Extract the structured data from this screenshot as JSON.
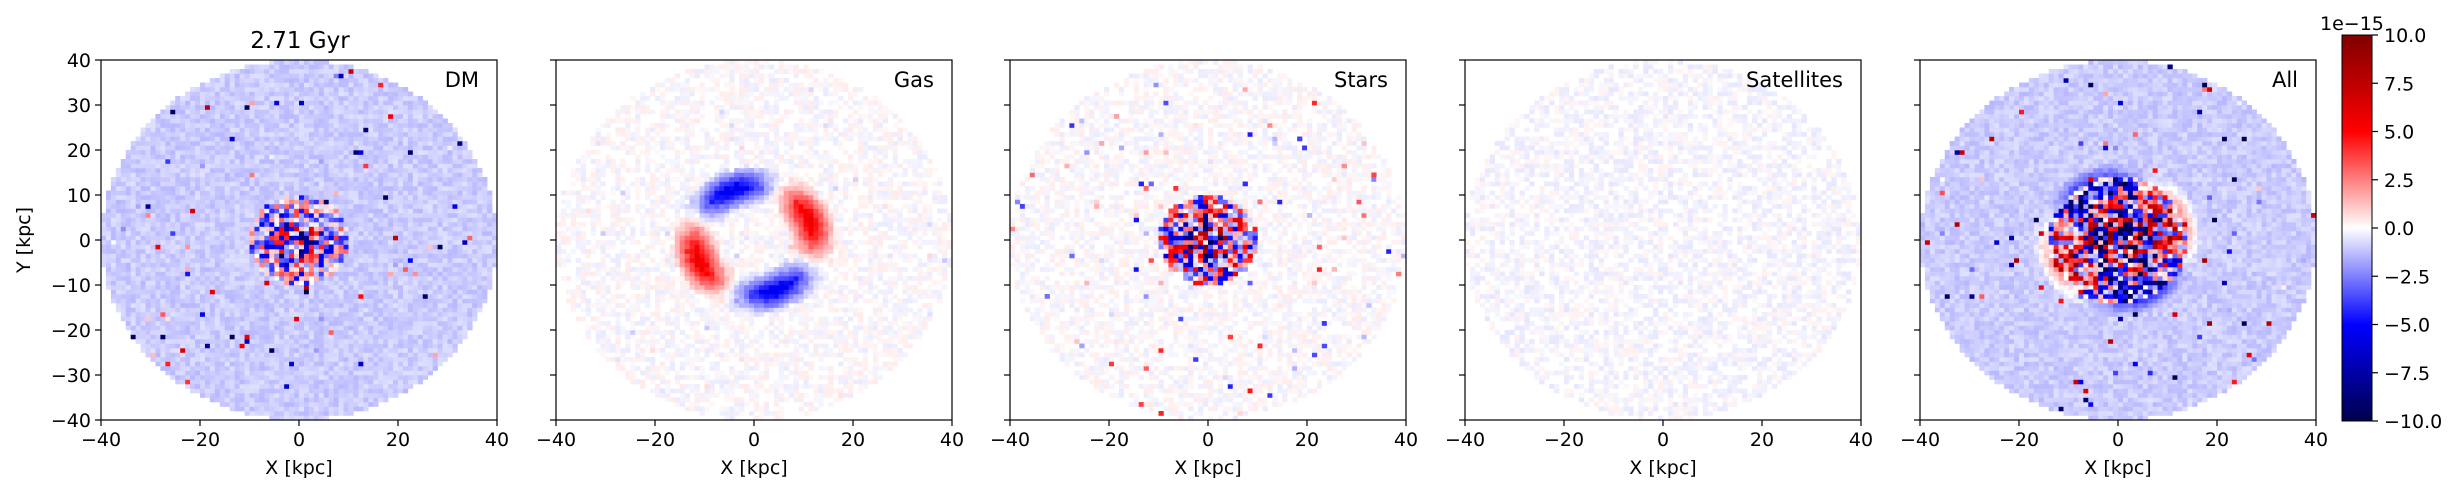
{
  "figure_title": "2.71 Gyr",
  "colorbar": {
    "exponent_label": "1e−15",
    "ticks": [
      "10.0",
      "7.5",
      "5.0",
      "2.5",
      "0.0",
      "−2.5",
      "−5.0",
      "−7.5",
      "−10.0"
    ],
    "range": [
      -10,
      10
    ],
    "colormap": "seismic"
  },
  "colors": {
    "negative_max": "#00004c",
    "negative_mid": "#0000ff",
    "neutral": "#ffffff",
    "positive_mid": "#ff0000",
    "positive_max": "#7f0000"
  },
  "chart_data": [
    {
      "type": "heatmap",
      "label": "DM",
      "xlabel": "X [kpc]",
      "ylabel": "Y [kpc]",
      "xlim": [
        -40,
        40
      ],
      "ylim": [
        -40,
        40
      ],
      "xticks": [
        "−40",
        "−20",
        "0",
        "20",
        "40"
      ],
      "yticks": [
        "40",
        "30",
        "20",
        "10",
        "0",
        "−10",
        "−20",
        "−30",
        "−40"
      ],
      "grid": false,
      "features": {
        "disk_radius": 40,
        "background": -1.0,
        "core_radius": 10,
        "core_amp": 9,
        "noise": 6,
        "ring_radius": 0,
        "ring_amp": 0
      }
    },
    {
      "type": "heatmap",
      "label": "Gas",
      "xlabel": "X [kpc]",
      "ylabel": "",
      "xlim": [
        -40,
        40
      ],
      "ylim": [
        -40,
        40
      ],
      "xticks": [
        "−40",
        "−20",
        "0",
        "20",
        "40"
      ],
      "yticks": [],
      "grid": false,
      "features": {
        "disk_radius": 40,
        "background": 0.0,
        "core_radius": 0,
        "core_amp": 0,
        "noise": 0.5,
        "ring_radius": 12,
        "ring_amp": 6
      }
    },
    {
      "type": "heatmap",
      "label": "Stars",
      "xlabel": "X [kpc]",
      "ylabel": "",
      "xlim": [
        -40,
        40
      ],
      "ylim": [
        -40,
        40
      ],
      "xticks": [
        "−40",
        "−20",
        "0",
        "20",
        "40"
      ],
      "yticks": [],
      "grid": false,
      "features": {
        "disk_radius": 40,
        "background": 0.0,
        "core_radius": 10,
        "core_amp": 12,
        "noise": 3,
        "ring_radius": 0,
        "ring_amp": 0
      }
    },
    {
      "type": "heatmap",
      "label": "Satellites",
      "xlabel": "X [kpc]",
      "ylabel": "",
      "xlim": [
        -40,
        40
      ],
      "ylim": [
        -40,
        40
      ],
      "xticks": [
        "−40",
        "−20",
        "0",
        "20",
        "40"
      ],
      "yticks": [],
      "grid": false,
      "features": {
        "disk_radius": 40,
        "background": -0.1,
        "core_radius": 0,
        "core_amp": 0,
        "noise": 0,
        "ring_radius": 0,
        "ring_amp": 0
      }
    },
    {
      "type": "heatmap",
      "label": "All",
      "xlabel": "X [kpc]",
      "ylabel": "",
      "xlim": [
        -40,
        40
      ],
      "ylim": [
        -40,
        40
      ],
      "xticks": [
        "−40",
        "−20",
        "0",
        "20",
        "40"
      ],
      "yticks": [],
      "grid": false,
      "features": {
        "disk_radius": 40,
        "background": -1.0,
        "core_radius": 14,
        "core_amp": 14,
        "noise": 7,
        "ring_radius": 12,
        "ring_amp": 5
      }
    }
  ]
}
